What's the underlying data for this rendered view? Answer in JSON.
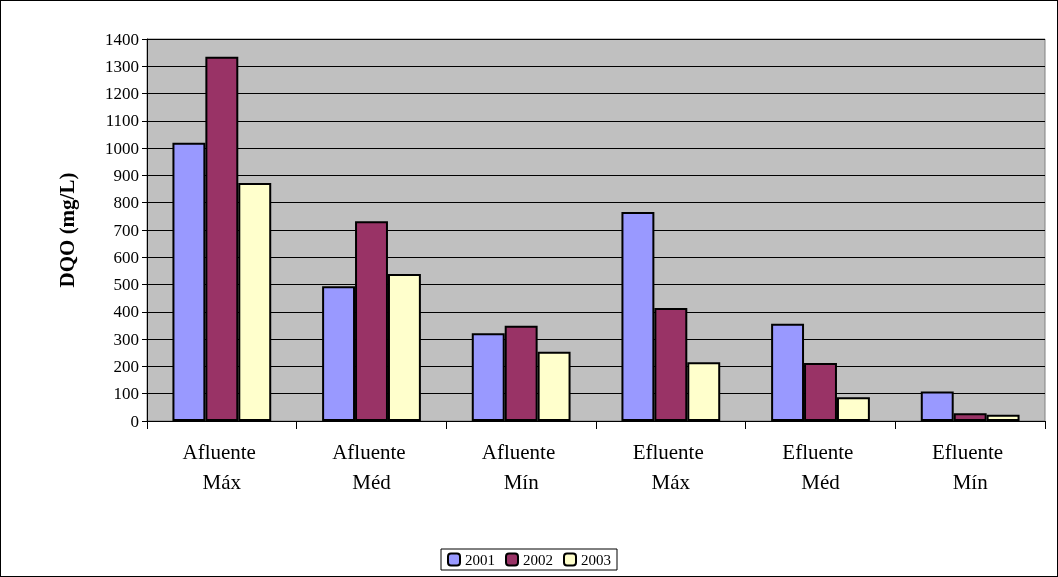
{
  "chart_data": {
    "type": "bar",
    "ylabel": "DQO (mg/L)",
    "categories": [
      "Afluente Máx",
      "Afluente Méd",
      "Afluente Mín",
      "Efluente Máx",
      "Efluente Méd",
      "Efluente Mín"
    ],
    "series": [
      {
        "name": "2001",
        "color": "#9999ff",
        "values": [
          1020,
          494,
          322,
          766,
          356,
          108
        ]
      },
      {
        "name": "2002",
        "color": "#993366",
        "values": [
          1335,
          732,
          349,
          414,
          213,
          28
        ]
      },
      {
        "name": "2003",
        "color": "#ffffcc",
        "values": [
          872,
          539,
          254,
          215,
          87,
          23
        ]
      }
    ],
    "ylim": [
      0,
      1400
    ],
    "yticks": [
      0,
      100,
      200,
      300,
      400,
      500,
      600,
      700,
      800,
      900,
      1000,
      1100,
      1200,
      1300,
      1400
    ],
    "grid": "y",
    "legend": "bottom"
  }
}
